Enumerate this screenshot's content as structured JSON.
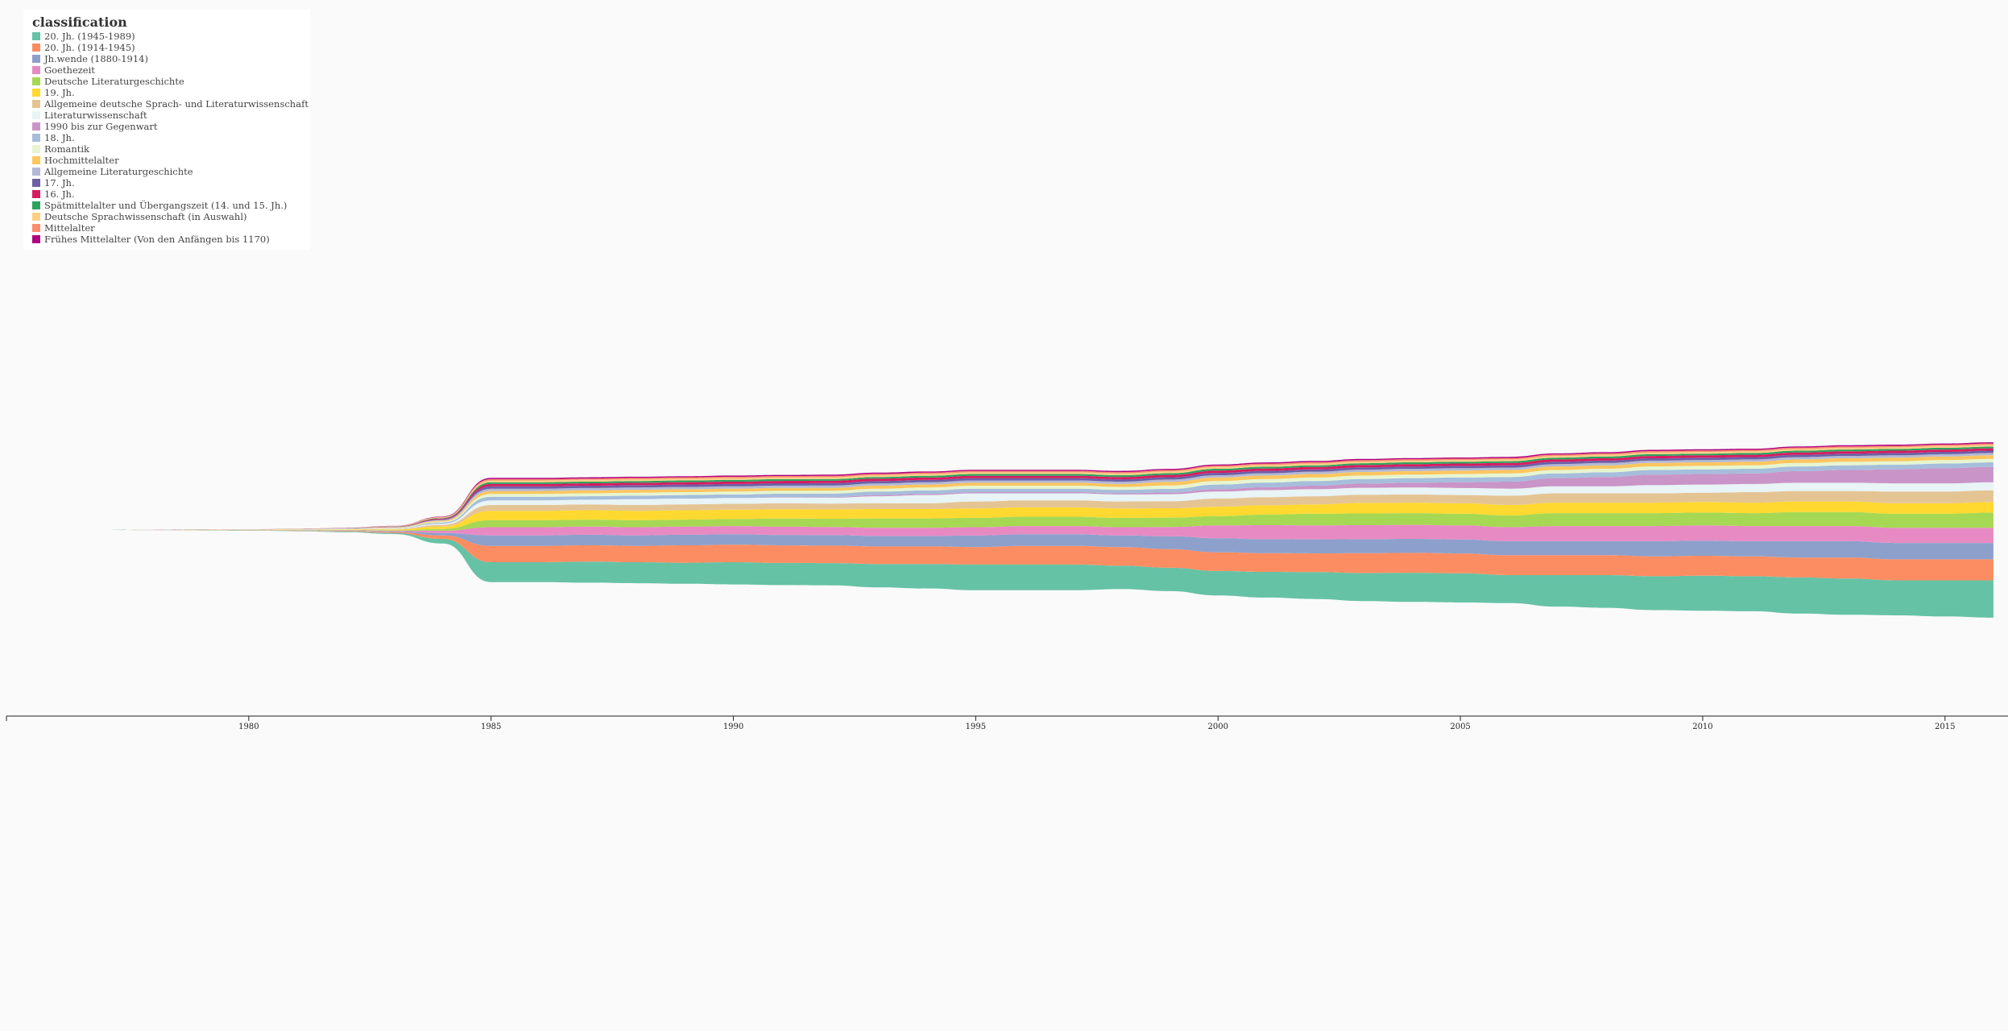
{
  "chart_data": {
    "type": "area",
    "subtype": "streamgraph",
    "legend_title": "classification",
    "legend_position": "top-left",
    "x_ticks": [
      "1980",
      "1985",
      "1990",
      "1995",
      "2000",
      "2005",
      "2010",
      "2015"
    ],
    "xlim": [
      1975,
      2016.3
    ],
    "x": [
      1975,
      1976,
      1977,
      1978,
      1979,
      1980,
      1981,
      1982,
      1983,
      1984,
      1985,
      1986,
      1987,
      1988,
      1989,
      1990,
      1991,
      1992,
      1993,
      1994,
      1995,
      1996,
      1997,
      1998,
      1999,
      2000,
      2001,
      2002,
      2003,
      2004,
      2005,
      2006,
      2007,
      2008,
      2009,
      2010,
      2011,
      2012,
      2013,
      2014,
      2015,
      2016
    ],
    "series": [
      {
        "name": "20. Jh. (1945-1989)",
        "color": "#66c2a5",
        "values": [
          0,
          0,
          0,
          0.05,
          0.1,
          0.2,
          0.3,
          0.5,
          1,
          4,
          17,
          17,
          18,
          18,
          18,
          19,
          19,
          19,
          20,
          21,
          22,
          22,
          22,
          20,
          20,
          21,
          22,
          23,
          24,
          25,
          25,
          24,
          27,
          28,
          29,
          30,
          30,
          31,
          31,
          30,
          31,
          32
        ]
      },
      {
        "name": "20. Jh. (1914-1945)",
        "color": "#fc8d62",
        "values": [
          0,
          0,
          0,
          0.05,
          0.1,
          0.15,
          0.3,
          0.5,
          0.8,
          3,
          14,
          14,
          14,
          14,
          15,
          15,
          15,
          15,
          15,
          15,
          15,
          16,
          16,
          16,
          16,
          16,
          16,
          16,
          17,
          17,
          17,
          17,
          17,
          17,
          17,
          17,
          17,
          17,
          18,
          18,
          18,
          18
        ]
      },
      {
        "name": "Jh.wende (1880-1914)",
        "color": "#8da0cb",
        "values": [
          0,
          0,
          0,
          0.04,
          0.08,
          0.1,
          0.2,
          0.3,
          0.6,
          2,
          9,
          9,
          9,
          9,
          9,
          9,
          9,
          9,
          9,
          9,
          10,
          10,
          10,
          10,
          11,
          12,
          12,
          12,
          12,
          12,
          12,
          12,
          12,
          12,
          13,
          13,
          13,
          14,
          14,
          14,
          14,
          14
        ]
      },
      {
        "name": "Goethezeit",
        "color": "#e78ac3",
        "values": [
          0,
          0,
          0,
          0.04,
          0.06,
          0.1,
          0.2,
          0.3,
          0.5,
          2,
          7,
          7,
          7,
          7,
          7,
          7,
          7,
          7,
          7,
          7,
          7,
          7,
          7,
          7,
          8,
          11,
          12,
          12,
          12,
          12,
          12,
          12,
          13,
          13,
          13,
          13,
          13,
          13,
          13,
          13,
          13,
          13
        ]
      },
      {
        "name": "Deutsche Literaturgeschichte",
        "color": "#a6d854",
        "values": [
          0,
          0,
          0,
          0.03,
          0.05,
          0.08,
          0.15,
          0.3,
          0.5,
          1.5,
          6,
          6,
          6,
          6,
          6,
          6,
          7,
          7,
          8,
          8,
          8,
          8,
          8,
          8,
          8,
          8,
          9,
          10,
          10,
          10,
          10,
          10,
          11,
          11,
          11,
          11,
          11,
          12,
          12,
          12,
          12,
          13
        ]
      },
      {
        "name": "19. Jh.",
        "color": "#ffd92f",
        "values": [
          0,
          0,
          0,
          0.04,
          0.06,
          0.1,
          0.2,
          0.3,
          0.6,
          2,
          8,
          8,
          8,
          8,
          8,
          8,
          8,
          8,
          8,
          8,
          8,
          8,
          8,
          8,
          8,
          8,
          8,
          8,
          9,
          9,
          9,
          9,
          9,
          9,
          9,
          9,
          9,
          9,
          9,
          9,
          9,
          9
        ]
      },
      {
        "name": "Allgemeine deutsche Sprach- und Literaturwissenschaft",
        "color": "#e5c494",
        "values": [
          0,
          0,
          0,
          0.03,
          0.05,
          0.08,
          0.15,
          0.25,
          0.5,
          1.5,
          5,
          5,
          5,
          5,
          5,
          5,
          5,
          5,
          5,
          5,
          6,
          6,
          6,
          6,
          6,
          7,
          7,
          7,
          7,
          7,
          7,
          8,
          8,
          8,
          8,
          8,
          9,
          9,
          9,
          10,
          10,
          10
        ]
      },
      {
        "name": "Literaturwissenschaft",
        "color": "#e8f4f5",
        "values": [
          0,
          0,
          0,
          0.02,
          0.04,
          0.06,
          0.1,
          0.2,
          0.4,
          1,
          4,
          4,
          4,
          5,
          5,
          5,
          5,
          5,
          6,
          7,
          7,
          6,
          6,
          6,
          6,
          6,
          6,
          6,
          6,
          6,
          6,
          6,
          6,
          6,
          7,
          7,
          7,
          7,
          7,
          7,
          7,
          7
        ]
      },
      {
        "name": "1990 bis zur Gegenwart",
        "color": "#c994c7",
        "values": [
          0,
          0,
          0,
          0,
          0,
          0,
          0,
          0,
          0,
          0,
          0,
          0,
          0,
          0,
          0,
          0,
          0.2,
          0.5,
          1,
          1,
          1,
          1,
          1,
          1,
          1.5,
          2,
          2.5,
          3,
          3.5,
          4,
          5,
          6,
          7,
          8,
          9,
          9,
          9,
          10,
          11,
          12,
          13,
          13
        ]
      },
      {
        "name": "18. Jh.",
        "color": "#a6bddb",
        "values": [
          0,
          0,
          0,
          0.02,
          0.04,
          0.06,
          0.1,
          0.2,
          0.3,
          1,
          3,
          3,
          3,
          3,
          3,
          3,
          3,
          3,
          3,
          3,
          3,
          3,
          3,
          3,
          3,
          4,
          4,
          4,
          4,
          4,
          4,
          4,
          4,
          4,
          4,
          4,
          4,
          4,
          4,
          4,
          4,
          4
        ]
      },
      {
        "name": "Romantik",
        "color": "#e6f5d0",
        "values": [
          0,
          0,
          0,
          0.01,
          0.03,
          0.05,
          0.08,
          0.15,
          0.3,
          0.8,
          2.5,
          2.5,
          2.5,
          2.5,
          2.5,
          2.5,
          2.5,
          2.5,
          2.5,
          2.5,
          2.5,
          2.5,
          2.5,
          2.5,
          3,
          3,
          3,
          3,
          3,
          3,
          3,
          3,
          3,
          3,
          3,
          3,
          3,
          3,
          3,
          3,
          3,
          3
        ]
      },
      {
        "name": "Hochmittelalter",
        "color": "#fdc65f",
        "values": [
          0,
          0,
          0,
          0.01,
          0.03,
          0.05,
          0.08,
          0.15,
          0.3,
          0.8,
          2.5,
          2.5,
          2.5,
          2.5,
          2.5,
          2.5,
          2.5,
          2.5,
          2.5,
          2.5,
          2.5,
          2.5,
          2.5,
          2.5,
          3,
          3,
          3,
          3,
          3,
          3,
          3,
          3,
          3,
          3,
          3,
          3,
          3,
          3,
          3,
          3,
          3,
          3
        ]
      },
      {
        "name": "Allgemeine Literaturgeschichte",
        "color": "#b3b9d6",
        "values": [
          0,
          0,
          0,
          0.01,
          0.02,
          0.04,
          0.06,
          0.1,
          0.2,
          0.6,
          2,
          2,
          2,
          2,
          2,
          2,
          2,
          2,
          2,
          2,
          2,
          2,
          2,
          2,
          2,
          2,
          2,
          2,
          2,
          2,
          2,
          2,
          2,
          2,
          2,
          2,
          2,
          2,
          2,
          2,
          2,
          2
        ]
      },
      {
        "name": "17. Jh.",
        "color": "#6d5fa4",
        "values": [
          0,
          0,
          0,
          0.01,
          0.02,
          0.04,
          0.06,
          0.1,
          0.2,
          0.6,
          2,
          2,
          2,
          2,
          2,
          2,
          2,
          2,
          2,
          2,
          2,
          2,
          2,
          2,
          2,
          2,
          2,
          2,
          2,
          2,
          2,
          2,
          2,
          2,
          2,
          2,
          2,
          2,
          2,
          2,
          2,
          2
        ]
      },
      {
        "name": "16. Jh.",
        "color": "#d81b60",
        "values": [
          0,
          0,
          0,
          0.01,
          0.02,
          0.04,
          0.06,
          0.1,
          0.2,
          0.6,
          2,
          2,
          2,
          2,
          2,
          2,
          2,
          2,
          2,
          2,
          2,
          2,
          2,
          2,
          2,
          2,
          2,
          2,
          2,
          2,
          2,
          2,
          2,
          2,
          2,
          2,
          2,
          2,
          2,
          2,
          2,
          2
        ]
      },
      {
        "name": "Spätmittelalter und Übergangszeit (14. und 15. Jh.)",
        "color": "#2ca25f",
        "values": [
          0,
          0,
          0,
          0.01,
          0.02,
          0.04,
          0.06,
          0.1,
          0.2,
          0.5,
          1.5,
          1.5,
          1.5,
          1.5,
          1.5,
          1.5,
          1.5,
          1.5,
          1.5,
          1.5,
          1.5,
          1.5,
          1.5,
          1.5,
          1.5,
          1.5,
          1.5,
          1.5,
          1.5,
          1.5,
          1.5,
          1.5,
          1.5,
          1.5,
          1.5,
          1.5,
          1.5,
          1.5,
          1.5,
          1.5,
          1.5,
          1.5
        ]
      },
      {
        "name": "Deutsche Sprachwissenschaft (in Auswahl)",
        "color": "#fdd085",
        "values": [
          0,
          0,
          0,
          0.01,
          0.02,
          0.04,
          0.06,
          0.1,
          0.2,
          0.5,
          1.5,
          1.5,
          1.5,
          1.5,
          1.5,
          1.5,
          1.5,
          1.5,
          1.5,
          1.5,
          1.5,
          1.5,
          1.5,
          1.5,
          1.5,
          1.5,
          1.5,
          1.5,
          1.5,
          1.5,
          1.5,
          1.5,
          1.5,
          1.5,
          1.5,
          1.5,
          1.5,
          1.5,
          1.5,
          1.5,
          1.5,
          1.5
        ]
      },
      {
        "name": "Mittelalter",
        "color": "#fb8d6f",
        "values": [
          0,
          0,
          0,
          0.01,
          0.02,
          0.03,
          0.05,
          0.08,
          0.15,
          0.4,
          1.2,
          1.2,
          1.2,
          1.2,
          1.2,
          1.2,
          1.2,
          1.2,
          1.2,
          1.2,
          1.2,
          1.2,
          1.2,
          1.2,
          1.2,
          1.2,
          1.2,
          1.2,
          1.2,
          1.2,
          1.2,
          1.2,
          1.2,
          1.2,
          1.2,
          1.2,
          1.2,
          1.2,
          1.2,
          1.2,
          1.2,
          1.2
        ]
      },
      {
        "name": "Frühes Mittelalter (Von den Anfängen bis 1170)",
        "color": "#ae017e",
        "values": [
          0,
          0,
          0,
          0.01,
          0.02,
          0.03,
          0.05,
          0.08,
          0.15,
          0.4,
          1,
          1,
          1,
          1,
          1,
          1,
          1,
          1,
          1,
          1,
          1,
          1,
          1,
          1,
          1,
          1,
          1,
          1,
          1,
          1,
          1,
          1,
          1,
          1,
          1,
          1,
          1,
          1,
          1,
          1,
          1,
          1
        ]
      }
    ],
    "grid": false
  }
}
